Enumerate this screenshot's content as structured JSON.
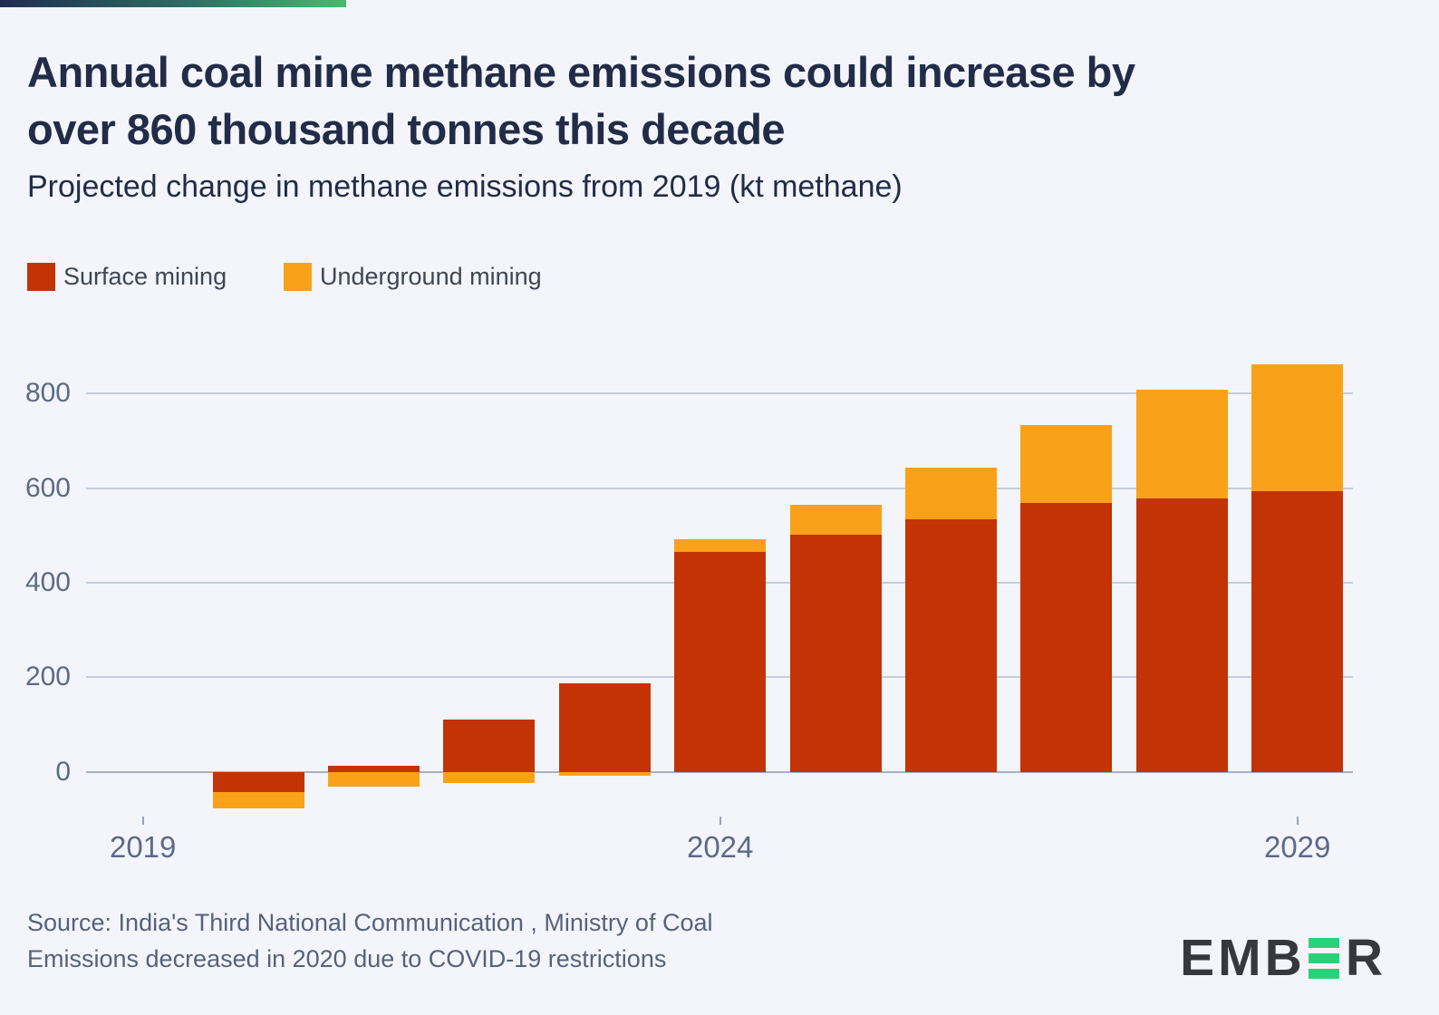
{
  "header": {
    "title_line1": "Annual coal mine methane emissions could increase by",
    "title_line2": "over 860 thousand tonnes this decade",
    "subtitle": "Projected change in methane emissions from 2019 (kt methane)"
  },
  "legend": {
    "items": [
      {
        "label": "Surface mining",
        "color": "#c43306"
      },
      {
        "label": "Underground mining",
        "color": "#f9a219"
      }
    ]
  },
  "chart_data": {
    "type": "bar",
    "stacked": true,
    "x": [
      2019,
      2020,
      2021,
      2022,
      2023,
      2024,
      2025,
      2026,
      2027,
      2028,
      2029
    ],
    "series": [
      {
        "name": "Surface mining",
        "color": "#c43306",
        "values": [
          0,
          -43,
          13,
          111,
          188,
          466,
          502,
          535,
          569,
          578,
          594
        ]
      },
      {
        "name": "Underground mining",
        "color": "#f9a219",
        "values": [
          0,
          -35,
          -31,
          -24,
          -8,
          26,
          62,
          108,
          164,
          230,
          267
        ]
      }
    ],
    "title": "Annual coal mine methane emissions could increase by over 860 thousand tonnes this decade",
    "subtitle": "Projected change in methane emissions from 2019 (kt methane)",
    "ylabel": "kt methane",
    "yticks": [
      0,
      200,
      400,
      600,
      800
    ],
    "ylim": [
      -100,
      880
    ],
    "labeled_xticks": [
      2019,
      2024,
      2029
    ],
    "grid": true,
    "legend_position": "top-left"
  },
  "footer": {
    "source_line1": "Source: India's Third National Communication , Ministry of Coal",
    "source_line2": "Emissions decreased in 2020 due to COVID-19 restrictions",
    "logo_text_left": "EMB",
    "logo_text_right": "R"
  }
}
